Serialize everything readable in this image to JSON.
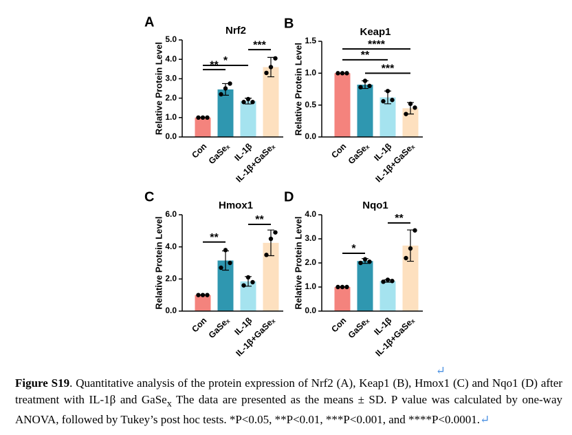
{
  "chart_data": [
    {
      "type": "bar",
      "panel": "A",
      "title": "Nrf2",
      "ylabel": "Relative Protein Level",
      "categories": [
        "Con",
        "GaSeₓ",
        "IL-1β",
        "IL-1β+GaSeₓ"
      ],
      "colors": [
        "#f4837d",
        "#2f97b0",
        "#a5e3ef",
        "#fde0bf"
      ],
      "values": [
        1.0,
        2.45,
        1.85,
        3.6
      ],
      "errors": [
        0,
        0.3,
        0.15,
        0.5
      ],
      "points": [
        [
          1.0,
          1.0,
          1.0
        ],
        [
          2.2,
          2.5,
          2.75
        ],
        [
          1.8,
          1.95,
          1.8
        ],
        [
          3.3,
          3.6,
          4.05
        ]
      ],
      "ylim": [
        0,
        5
      ],
      "yticks": [
        {
          "value": 0,
          "label": "0.0"
        },
        {
          "value": 1,
          "label": "1.0"
        },
        {
          "value": 2,
          "label": "2.0"
        },
        {
          "value": 3,
          "label": "3.0"
        },
        {
          "value": 4,
          "label": "4.0"
        },
        {
          "value": 5,
          "label": "5.0"
        }
      ],
      "annotations": [
        {
          "from": "Con",
          "to": "GaSeₓ",
          "y": 3.47,
          "label": "**"
        },
        {
          "from": "Con",
          "to": "IL-1β",
          "y": 3.69,
          "label": "*"
        },
        {
          "from": "IL-1β",
          "to": "IL-1β+GaSeₓ",
          "y": 4.5,
          "label": "***"
        }
      ]
    },
    {
      "type": "bar",
      "panel": "B",
      "title": "Keap1",
      "ylabel": "Relative Protein Level",
      "categories": [
        "Con",
        "GaSeₓ",
        "IL-1β",
        "IL-1β+GaSeₓ"
      ],
      "colors": [
        "#f4837d",
        "#2f97b0",
        "#a5e3ef",
        "#fde0bf"
      ],
      "values": [
        1.0,
        0.82,
        0.62,
        0.45
      ],
      "errors": [
        0,
        0.06,
        0.1,
        0.09
      ],
      "points": [
        [
          1.0,
          1.0,
          1.0
        ],
        [
          0.78,
          0.88,
          0.8
        ],
        [
          0.56,
          0.72,
          0.58
        ],
        [
          0.36,
          0.52,
          0.46
        ]
      ],
      "ylim": [
        0,
        1.5
      ],
      "yticks": [
        {
          "value": 0,
          "label": "0.0"
        },
        0.5,
        {
          "value": 1,
          "label": "1.0"
        },
        1.5
      ],
      "annotations": [
        {
          "from": "Con",
          "to": "IL-1β+GaSeₓ",
          "y": 1.38,
          "label": "****"
        },
        {
          "from": "Con",
          "to": "IL-1β",
          "y": 1.21,
          "label": "**"
        },
        {
          "from": "GaSeₓ",
          "to": "IL-1β+GaSeₓ",
          "y": 1.0,
          "label": "***"
        }
      ]
    },
    {
      "type": "bar",
      "panel": "C",
      "title": "Hmox1",
      "ylabel": "Relative Protein Level",
      "categories": [
        "Con",
        "GaSeₓ",
        "IL-1β",
        "IL-1β+GaSeₓ"
      ],
      "colors": [
        "#f4837d",
        "#2f97b0",
        "#a5e3ef",
        "#fde0bf"
      ],
      "values": [
        1.0,
        3.15,
        1.85,
        4.25
      ],
      "errors": [
        0,
        0.6,
        0.3,
        0.8
      ],
      "points": [
        [
          1.0,
          1.0,
          1.0
        ],
        [
          2.7,
          3.8,
          3.0
        ],
        [
          1.6,
          2.1,
          1.8
        ],
        [
          3.5,
          4.5,
          4.9
        ]
      ],
      "ylim": [
        0,
        6
      ],
      "yticks": [
        {
          "value": 0,
          "label": "0.0"
        },
        {
          "value": 2,
          "label": "2.0"
        },
        {
          "value": 4,
          "label": "4.0"
        },
        {
          "value": 6,
          "label": "6.0"
        }
      ],
      "annotations": [
        {
          "from": "Con",
          "to": "GaSeₓ",
          "y": 4.3,
          "label": "**"
        },
        {
          "from": "IL-1β",
          "to": "IL-1β+GaSeₓ",
          "y": 5.4,
          "label": "**"
        }
      ]
    },
    {
      "type": "bar",
      "panel": "D",
      "title": "Nqo1",
      "ylabel": "Relative Protein Level",
      "categories": [
        "Con",
        "GaSeₓ",
        "IL-1β",
        "IL-1β+GaSeₓ"
      ],
      "colors": [
        "#f4837d",
        "#2f97b0",
        "#a5e3ef",
        "#fde0bf"
      ],
      "values": [
        1.0,
        2.08,
        1.25,
        2.72
      ],
      "errors": [
        0,
        0.1,
        0.05,
        0.65
      ],
      "points": [
        [
          1.0,
          1.0,
          1.0
        ],
        [
          2.0,
          2.15,
          2.05
        ],
        [
          1.22,
          1.3,
          1.25
        ],
        [
          2.2,
          2.6,
          3.35
        ]
      ],
      "ylim": [
        0,
        4
      ],
      "yticks": [
        {
          "value": 0,
          "label": "0.0"
        },
        {
          "value": 1,
          "label": "1.0"
        },
        {
          "value": 2,
          "label": "2.0"
        },
        {
          "value": 3,
          "label": "3.0"
        },
        {
          "value": 4,
          "label": "4.0"
        }
      ],
      "annotations": [
        {
          "from": "Con",
          "to": "GaSeₓ",
          "y": 2.4,
          "label": "*"
        },
        {
          "from": "IL-1β",
          "to": "IL-1β+GaSeₓ",
          "y": 3.66,
          "label": "**"
        }
      ]
    }
  ],
  "caption": {
    "parts": [
      {
        "text": "↵",
        "style": "mark-line"
      },
      {
        "text": "Figure S19",
        "style": "bold"
      },
      {
        "text": ". Quantitative analysis of the protein expression of Nrf2 (A), Keap1 (B), Hmox1 (C) and Nqo1 (D) after treatment with IL-1β and GaSe",
        "style": "plain"
      },
      {
        "text": "x",
        "style": "sub"
      },
      {
        "text": " The data are presented as the means ± SD. P value was calculated by one-way ANOVA, followed by Tukey’s post hoc tests. *P<0.05, **P<0.01, ***P<0.001, and ****P<0.0001.",
        "style": "plain"
      },
      {
        "text": "↵",
        "style": "mark"
      }
    ]
  }
}
